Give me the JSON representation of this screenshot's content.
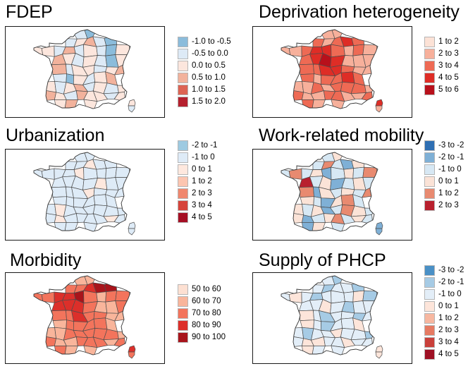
{
  "panels": [
    {
      "id": "fdep",
      "title": "FDEP",
      "legend": [
        {
          "label": "-1.0 to -0.5",
          "color": "#8bbcdb"
        },
        {
          "label": "-0.5 to 0.0",
          "color": "#ddeaf6"
        },
        {
          "label": "0.0 to 0.5",
          "color": "#fce6dd"
        },
        {
          "label": "0.5 to 1.0",
          "color": "#f2b29c"
        },
        {
          "label": "1.0 to 1.5",
          "color": "#dd6353"
        },
        {
          "label": "1.5 to 2.0",
          "color": "#b5202e"
        }
      ],
      "fills": [
        1,
        0,
        1,
        2,
        3,
        1,
        0,
        2,
        2,
        1,
        3,
        1,
        2,
        1,
        0,
        2,
        3,
        2,
        1,
        2,
        1,
        0,
        2,
        3,
        1,
        2,
        2,
        1,
        2,
        3,
        1,
        0,
        2,
        1,
        2,
        3,
        2,
        1,
        2,
        3,
        1,
        2,
        1,
        2,
        3,
        2,
        1,
        3,
        2,
        2,
        1,
        2,
        2,
        3,
        2,
        1,
        2,
        3,
        2,
        1,
        2,
        2,
        3,
        1,
        2,
        3,
        2,
        1,
        2,
        2,
        3,
        2,
        1,
        2,
        3,
        2,
        1,
        2,
        2,
        3,
        2,
        1,
        2,
        2,
        3,
        2,
        1,
        2,
        3,
        2,
        1,
        2
      ],
      "corsica": [
        2,
        1
      ]
    },
    {
      "id": "deprivation",
      "title": "Deprivation heterogeneity",
      "legend": [
        {
          "label": "1 to 2",
          "color": "#fce2d6"
        },
        {
          "label": "2 to 3",
          "color": "#f7b09b"
        },
        {
          "label": "3 to 4",
          "color": "#ee6a54"
        },
        {
          "label": "4 to 5",
          "color": "#de2d26"
        },
        {
          "label": "5 to 6",
          "color": "#b8101b"
        }
      ],
      "fills": [
        1,
        1,
        2,
        1,
        2,
        3,
        2,
        1,
        1,
        2,
        3,
        3,
        2,
        1,
        2,
        1,
        2,
        3,
        4,
        3,
        1,
        1,
        1,
        2,
        2,
        3,
        3,
        2,
        1,
        1,
        2,
        1,
        2,
        2,
        3,
        2,
        1,
        1,
        2,
        1,
        2,
        2,
        2,
        1,
        2,
        1,
        1,
        2,
        2,
        1,
        1,
        2,
        2,
        1,
        1,
        2,
        1,
        1,
        2,
        2,
        1,
        1,
        2,
        1,
        2,
        1,
        1,
        2,
        2,
        3,
        1,
        2,
        3,
        2,
        1,
        2,
        3,
        3,
        2,
        1,
        1,
        2,
        3,
        2,
        1,
        2,
        2,
        1,
        2,
        1,
        1,
        2
      ],
      "corsica": [
        3,
        1
      ]
    },
    {
      "id": "urbanization",
      "title": "Urbanization",
      "legend": [
        {
          "label": "-2 to -1",
          "color": "#9ecae1"
        },
        {
          "label": "-1 to 0",
          "color": "#deebf7"
        },
        {
          "label": "0 to 1",
          "color": "#fee8de"
        },
        {
          "label": "1 to 2",
          "color": "#fcc5b0"
        },
        {
          "label": "2 to 3",
          "color": "#f0876e"
        },
        {
          "label": "3 to 4",
          "color": "#d6443b"
        },
        {
          "label": "4 to 5",
          "color": "#a50f24"
        }
      ],
      "fills": [
        1,
        1,
        1,
        1,
        2,
        1,
        1,
        1,
        1,
        1,
        1,
        2,
        1,
        1,
        1,
        1,
        1,
        1,
        1,
        1,
        2,
        1,
        1,
        1,
        1,
        1,
        2,
        1,
        1,
        1,
        1,
        1,
        1,
        1,
        1,
        1,
        1,
        2,
        1,
        1,
        1,
        1,
        1,
        1,
        1,
        2,
        1,
        1,
        1,
        1,
        2,
        1,
        1,
        1,
        1,
        1,
        1,
        1,
        1,
        1,
        1,
        1,
        2,
        1,
        1,
        1,
        1,
        1,
        1,
        1,
        1,
        1,
        1,
        1,
        1,
        2,
        1,
        1,
        1,
        1,
        1,
        1,
        1,
        1,
        1,
        1,
        2,
        1,
        1,
        1,
        1,
        1
      ],
      "corsica": [
        1,
        1
      ]
    },
    {
      "id": "mobility",
      "title": "Work-related mobility",
      "legend": [
        {
          "label": "-3 to -2",
          "color": "#2f6fb3"
        },
        {
          "label": "-2 to -1",
          "color": "#7fb0d6"
        },
        {
          "label": "-1 to 0",
          "color": "#d7e8f4"
        },
        {
          "label": "0 to 1",
          "color": "#fbe3d7"
        },
        {
          "label": "1 to 2",
          "color": "#e88a70"
        },
        {
          "label": "2 to 3",
          "color": "#b8202e"
        }
      ],
      "fills": [
        2,
        3,
        2,
        4,
        2,
        1,
        3,
        2,
        4,
        2,
        3,
        1,
        2,
        3,
        2,
        4,
        5,
        2,
        3,
        1,
        2,
        3,
        2,
        4,
        1,
        3,
        2,
        3,
        2,
        4,
        3,
        2,
        1,
        3,
        4,
        2,
        3,
        2,
        3,
        1,
        2,
        4,
        3,
        2,
        3,
        1,
        2,
        3,
        4,
        2,
        3,
        2,
        1,
        3,
        2,
        4,
        3,
        2,
        3,
        2,
        1,
        3,
        4,
        2,
        3,
        2,
        3,
        1,
        2,
        3,
        4,
        2,
        3,
        2,
        1,
        3,
        2,
        0,
        3,
        2,
        4,
        1,
        2,
        3,
        2,
        1,
        3,
        4,
        2,
        3,
        2,
        1
      ],
      "corsica": [
        1,
        1
      ]
    },
    {
      "id": "morbidity",
      "title": "Morbidity",
      "legend": [
        {
          "label": "50 to 60",
          "color": "#fde0d2"
        },
        {
          "label": "60 to 70",
          "color": "#f9b59b"
        },
        {
          "label": "70 to 80",
          "color": "#f3745c"
        },
        {
          "label": "80 to 90",
          "color": "#dc2f2a"
        },
        {
          "label": "90 to 100",
          "color": "#a8141b"
        }
      ],
      "fills": [
        1,
        1,
        2,
        2,
        3,
        4,
        4,
        2,
        2,
        3,
        3,
        4,
        2,
        1,
        2,
        2,
        3,
        3,
        3,
        2,
        1,
        1,
        2,
        2,
        2,
        3,
        2,
        2,
        1,
        1,
        1,
        2,
        2,
        2,
        2,
        1,
        1,
        1,
        2,
        2,
        2,
        2,
        2,
        1,
        2,
        1,
        1,
        2,
        2,
        2,
        1,
        2,
        2,
        1,
        1,
        1,
        1,
        1,
        2,
        2,
        1,
        1,
        2,
        1,
        2,
        1,
        1,
        2,
        2,
        2,
        1,
        2,
        2,
        2,
        1,
        1,
        2,
        2,
        2,
        1,
        1,
        2,
        2,
        2,
        1,
        2,
        2,
        1,
        2,
        2,
        1,
        1
      ],
      "corsica": [
        3,
        2
      ]
    },
    {
      "id": "phcp",
      "title": "Supply of PHCP",
      "legend": [
        {
          "label": "-3 to -2",
          "color": "#4a90c6"
        },
        {
          "label": "-2 to -1",
          "color": "#a6cbe5"
        },
        {
          "label": "-1 to 0",
          "color": "#e3eef8"
        },
        {
          "label": "0 to 1",
          "color": "#fde5da"
        },
        {
          "label": "1 to 2",
          "color": "#f7b7a0"
        },
        {
          "label": "2 to 3",
          "color": "#e67a62"
        },
        {
          "label": "3 to 4",
          "color": "#c9403a"
        },
        {
          "label": "4 to 5",
          "color": "#9e1024"
        }
      ],
      "fills": [
        2,
        1,
        2,
        1,
        2,
        2,
        1,
        2,
        3,
        2,
        1,
        2,
        2,
        2,
        3,
        1,
        2,
        2,
        3,
        2,
        1,
        2,
        2,
        3,
        2,
        1,
        2,
        2,
        1,
        2,
        3,
        2,
        1,
        2,
        2,
        3,
        2,
        1,
        2,
        2,
        3,
        2,
        2,
        1,
        2,
        3,
        3,
        2,
        2,
        3,
        2,
        2,
        3,
        2,
        2,
        3,
        3,
        2,
        3,
        2,
        2,
        3,
        4,
        3,
        2,
        3,
        3,
        2,
        3,
        4,
        3,
        2,
        3,
        3,
        2,
        3,
        3,
        2,
        3,
        4,
        3,
        2,
        3,
        3,
        2,
        3,
        3,
        4,
        2,
        3,
        3,
        2
      ],
      "corsica": [
        3,
        3
      ]
    }
  ]
}
